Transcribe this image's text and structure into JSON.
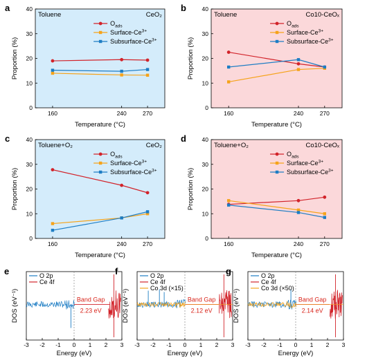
{
  "chart_data": [
    {
      "panel": "a",
      "type": "line",
      "title": "",
      "left_label": "Toluene",
      "right_label": "CeO₂",
      "xlabel": "Temperature (°C)",
      "ylabel": "Proportion (%)",
      "categories": [
        "160",
        "240",
        "270"
      ],
      "x": [
        160,
        240,
        270
      ],
      "ylim": [
        0,
        40
      ],
      "yticks": [
        "0",
        "10",
        "20",
        "30",
        "40"
      ],
      "background": "#d4ecfb",
      "legend_position": "top-right",
      "series": [
        {
          "name": "O",
          "sub": "ads",
          "sup": "",
          "color": "#d2232a",
          "marker": "circle",
          "values": [
            19.0,
            19.5,
            19.3
          ]
        },
        {
          "name": "Surface-Ce",
          "sub": "",
          "sup": "3+",
          "color": "#f5a31a",
          "marker": "square",
          "values": [
            14.0,
            13.3,
            13.2
          ]
        },
        {
          "name": "Subsurface-Ce",
          "sub": "",
          "sup": "3+",
          "color": "#1d7dc4",
          "marker": "square",
          "values": [
            15.2,
            14.8,
            15.5
          ]
        }
      ]
    },
    {
      "panel": "b",
      "type": "line",
      "title": "",
      "left_label": "Toluene",
      "right_label": "Co10-CeOₓ",
      "xlabel": "Temperature (°C)",
      "ylabel": "Proportion (%)",
      "categories": [
        "160",
        "240",
        "270"
      ],
      "x": [
        160,
        240,
        270
      ],
      "ylim": [
        0,
        40
      ],
      "yticks": [
        "0",
        "10",
        "20",
        "30",
        "40"
      ],
      "background": "#fbd8da",
      "legend_position": "top-right",
      "series": [
        {
          "name": "O",
          "sub": "ads",
          "sup": "",
          "color": "#d2232a",
          "marker": "circle",
          "values": [
            22.5,
            17.8,
            16.5
          ]
        },
        {
          "name": "Surface-Ce",
          "sub": "",
          "sup": "3+",
          "color": "#f5a31a",
          "marker": "square",
          "values": [
            10.5,
            15.5,
            16.0
          ]
        },
        {
          "name": "Subsurface-Ce",
          "sub": "",
          "sup": "3+",
          "color": "#1d7dc4",
          "marker": "square",
          "values": [
            16.5,
            19.5,
            16.5
          ]
        }
      ]
    },
    {
      "panel": "c",
      "type": "line",
      "title": "",
      "left_label": "Toluene+O₂",
      "right_label": "CeO₂",
      "xlabel": "Temperature (°C)",
      "ylabel": "Proportion (%)",
      "categories": [
        "160",
        "240",
        "270"
      ],
      "x": [
        160,
        240,
        270
      ],
      "ylim": [
        0,
        40
      ],
      "yticks": [
        "0",
        "10",
        "20",
        "30",
        "40"
      ],
      "background": "#d4ecfb",
      "legend_position": "top-right",
      "series": [
        {
          "name": "O",
          "sub": "ads",
          "sup": "",
          "color": "#d2232a",
          "marker": "circle",
          "values": [
            27.8,
            21.5,
            18.5
          ]
        },
        {
          "name": "Surface-Ce",
          "sub": "",
          "sup": "3+",
          "color": "#f5a31a",
          "marker": "square",
          "values": [
            6.0,
            8.3,
            10.0
          ]
        },
        {
          "name": "Subsurface-Ce",
          "sub": "",
          "sup": "3+",
          "color": "#1d7dc4",
          "marker": "square",
          "values": [
            3.3,
            8.3,
            10.8
          ]
        }
      ]
    },
    {
      "panel": "d",
      "type": "line",
      "title": "",
      "left_label": "Toluene+O₂",
      "right_label": "Co10-CeOₓ",
      "xlabel": "Temperature (°C)",
      "ylabel": "Proportion (%)",
      "categories": [
        "160",
        "240",
        "270"
      ],
      "x": [
        160,
        240,
        270
      ],
      "ylim": [
        0,
        40
      ],
      "yticks": [
        "0",
        "10",
        "20",
        "30",
        "40"
      ],
      "background": "#fbd8da",
      "legend_position": "top-right",
      "series": [
        {
          "name": "O",
          "sub": "ads",
          "sup": "",
          "color": "#d2232a",
          "marker": "circle",
          "values": [
            13.8,
            15.3,
            16.7
          ]
        },
        {
          "name": "Surface-Ce",
          "sub": "",
          "sup": "3+",
          "color": "#f5a31a",
          "marker": "square",
          "values": [
            15.3,
            11.5,
            10.0
          ]
        },
        {
          "name": "Subsurface-Ce",
          "sub": "",
          "sup": "3+",
          "color": "#1d7dc4",
          "marker": "square",
          "values": [
            13.5,
            10.5,
            8.5
          ]
        }
      ]
    },
    {
      "panel": "e",
      "type": "line",
      "title": "",
      "xlabel": "Energy (eV)",
      "ylabel": "DOS (eV⁻¹)",
      "xlim": [
        -3,
        3
      ],
      "xticks": [
        "-3",
        "-2",
        "-1",
        "0",
        "1",
        "2",
        "3"
      ],
      "fermi_level": 0,
      "band_gap_label": "Band Gap",
      "band_gap_value": "2.23 eV",
      "band_gap_range": [
        0.0,
        2.23
      ],
      "legend_position": "top-left",
      "series": [
        {
          "name": "O 2p",
          "color": "#1d7dc4",
          "description": "valence states from -3 to 0 eV with a sharp negative spike near -0.2 eV"
        },
        {
          "name": "Ce 4f",
          "color": "#d2232a",
          "description": "conduction states near 2.3 to 2.9 eV"
        }
      ]
    },
    {
      "panel": "f",
      "type": "line",
      "title": "",
      "xlabel": "Energy (eV)",
      "ylabel": "DOS (eV⁻¹)",
      "xlim": [
        -3,
        3
      ],
      "xticks": [
        "-3",
        "-2",
        "-1",
        "0",
        "1",
        "2",
        "3"
      ],
      "fermi_level": 0,
      "band_gap_label": "Band Gap",
      "band_gap_value": "2.12 eV",
      "band_gap_range": [
        0.0,
        2.12
      ],
      "legend_position": "top-left",
      "series": [
        {
          "name": "O 2p",
          "color": "#1d7dc4",
          "description": "valence states from -3 to 0 eV"
        },
        {
          "name": "Ce 4f",
          "color": "#d2232a",
          "description": "conduction states near 2.2 to 2.7 eV"
        },
        {
          "name": "Co 3d (×15)",
          "color": "#f5a31a",
          "description": "states mixed with O 2p below 0 eV"
        }
      ]
    },
    {
      "panel": "g",
      "type": "line",
      "title": "",
      "xlabel": "Energy (eV)",
      "ylabel": "DOS (eV⁻¹)",
      "xlim": [
        -3,
        3
      ],
      "xticks": [
        "-3",
        "-2",
        "-1",
        "0",
        "1",
        "2",
        "3"
      ],
      "fermi_level": 0,
      "band_gap_label": "Band Gap",
      "band_gap_value": "2.14 eV",
      "band_gap_range": [
        0.0,
        2.14
      ],
      "legend_position": "top-left",
      "series": [
        {
          "name": "O 2p",
          "color": "#1d7dc4",
          "description": "valence states from -3 to 0 eV with a peak near -0.3 eV"
        },
        {
          "name": "Ce 4f",
          "color": "#d2232a",
          "description": "conduction states near 2.2 to 3.0 eV"
        },
        {
          "name": "Co 3d (×50)",
          "color": "#f5a31a",
          "description": "states mixed with O 2p below 0 eV"
        }
      ]
    }
  ]
}
